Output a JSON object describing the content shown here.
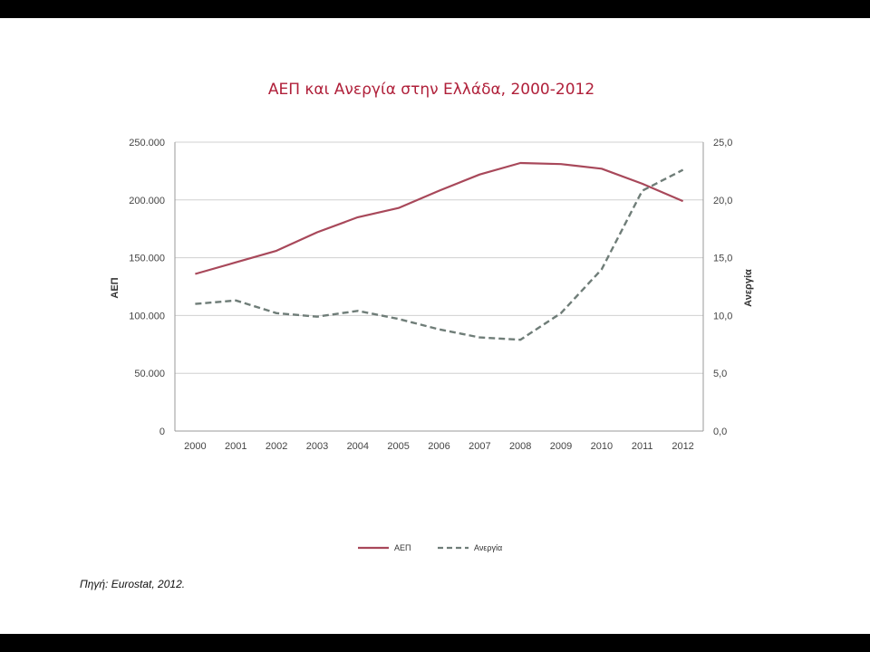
{
  "colors": {
    "gdp": "#a8485a",
    "unemployment": "#6f7d78",
    "title": "#b0203a",
    "grid": "#d0d0d0"
  },
  "source_note": "Πηγή: Eurostat, 2012.",
  "chart_data": {
    "type": "line",
    "title": "ΑΕΠ και Ανεργία στην Ελλάδα, 2000-2012",
    "x": [
      "2000",
      "2001",
      "2002",
      "2003",
      "2004",
      "2005",
      "2006",
      "2007",
      "2008",
      "2009",
      "2010",
      "2011",
      "2012"
    ],
    "xlabel": "",
    "ylabel": "ΑΕΠ",
    "y2label": "Ανεργία",
    "ylim": [
      0,
      250000
    ],
    "y2lim": [
      0,
      25
    ],
    "y_ticks": [
      "0",
      "50.000",
      "100.000",
      "150.000",
      "200.000",
      "250.000"
    ],
    "y2_ticks": [
      "0,0",
      "5,0",
      "10,0",
      "15,0",
      "20,0",
      "25,0"
    ],
    "grid": true,
    "legend_position": "bottom",
    "series": [
      {
        "name": "ΑΕΠ",
        "axis": "left",
        "style": "solid",
        "values": [
          136000,
          146000,
          156000,
          172000,
          185000,
          193000,
          208000,
          222000,
          232000,
          231000,
          227000,
          214000,
          199000
        ]
      },
      {
        "name": "Ανεργία",
        "axis": "right",
        "style": "dashed",
        "values": [
          11.0,
          11.3,
          10.2,
          9.9,
          10.4,
          9.7,
          8.8,
          8.1,
          7.9,
          10.2,
          14.0,
          20.8,
          22.6
        ]
      }
    ]
  }
}
